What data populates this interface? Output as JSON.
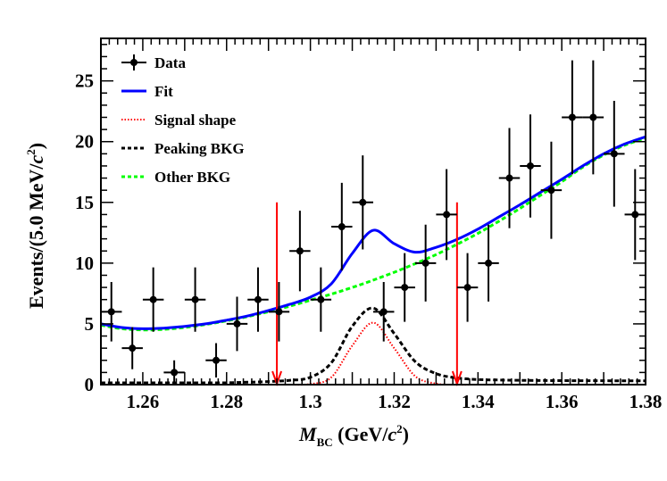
{
  "chart_data": {
    "type": "scatter",
    "xlabel": "M_BC (GeV/c^2)",
    "ylabel": "Events/(5.0 MeV/c^2)",
    "xlabel_parts": {
      "main": "M",
      "sub": "BC",
      "unit_pre": " (GeV/",
      "unit_c": "c",
      "unit_sup": "2",
      "unit_post": ")"
    },
    "ylabel_parts": {
      "pre": "Events/(5.0 MeV/",
      "c": "c",
      "sup": "2",
      "post": ")"
    },
    "xlim": [
      1.25,
      1.38
    ],
    "ylim": [
      0,
      28.5
    ],
    "x_ticks": [
      1.26,
      1.28,
      1.3,
      1.32,
      1.34,
      1.36,
      1.38
    ],
    "x_tick_labels": [
      "1.26",
      "1.28",
      "1.3",
      "1.32",
      "1.34",
      "1.36",
      "1.38"
    ],
    "y_ticks": [
      0,
      5,
      10,
      15,
      20,
      25
    ],
    "y_tick_labels": [
      "0",
      "5",
      "10",
      "15",
      "20",
      "25"
    ],
    "grid": false,
    "legend_position": "top-left",
    "series": [
      {
        "name": "Data",
        "kind": "points_with_errors",
        "color": "#000000",
        "x_bin_halfwidth": 0.0025,
        "points": [
          {
            "x": 1.2525,
            "y": 6
          },
          {
            "x": 1.2575,
            "y": 3
          },
          {
            "x": 1.2625,
            "y": 7
          },
          {
            "x": 1.2675,
            "y": 1
          },
          {
            "x": 1.2725,
            "y": 7
          },
          {
            "x": 1.2775,
            "y": 2
          },
          {
            "x": 1.2825,
            "y": 5
          },
          {
            "x": 1.2875,
            "y": 7
          },
          {
            "x": 1.2925,
            "y": 6
          },
          {
            "x": 1.2975,
            "y": 11
          },
          {
            "x": 1.3025,
            "y": 7
          },
          {
            "x": 1.3075,
            "y": 13
          },
          {
            "x": 1.3125,
            "y": 15
          },
          {
            "x": 1.3175,
            "y": 6
          },
          {
            "x": 1.3225,
            "y": 8
          },
          {
            "x": 1.3275,
            "y": 10
          },
          {
            "x": 1.3325,
            "y": 14
          },
          {
            "x": 1.3375,
            "y": 8
          },
          {
            "x": 1.3425,
            "y": 10
          },
          {
            "x": 1.3475,
            "y": 17
          },
          {
            "x": 1.3525,
            "y": 18
          },
          {
            "x": 1.3575,
            "y": 16
          },
          {
            "x": 1.3625,
            "y": 22
          },
          {
            "x": 1.3675,
            "y": 22
          },
          {
            "x": 1.3725,
            "y": 19
          },
          {
            "x": 1.3775,
            "y": 14
          }
        ]
      },
      {
        "name": "Fit",
        "kind": "line",
        "color": "#0000ff",
        "style": "solid"
      },
      {
        "name": "Signal shape",
        "kind": "line",
        "color": "#ff0000",
        "style": "dotted"
      },
      {
        "name": "Peaking BKG",
        "kind": "line",
        "color": "#000000",
        "style": "dashed"
      },
      {
        "name": "Other BKG",
        "kind": "line",
        "color": "#00ff00",
        "style": "dashed"
      }
    ],
    "curve_samples": {
      "x": [
        1.25,
        1.255,
        1.26,
        1.265,
        1.27,
        1.275,
        1.28,
        1.285,
        1.29,
        1.295,
        1.3,
        1.305,
        1.31,
        1.315,
        1.32,
        1.325,
        1.33,
        1.335,
        1.34,
        1.345,
        1.35,
        1.355,
        1.36,
        1.365,
        1.37,
        1.375,
        1.38
      ],
      "other_bkg": [
        4.9,
        4.6,
        4.5,
        4.55,
        4.7,
        4.95,
        5.25,
        5.6,
        6.0,
        6.45,
        6.95,
        7.45,
        8.0,
        8.6,
        9.25,
        9.95,
        10.7,
        11.55,
        12.45,
        13.45,
        14.5,
        15.6,
        16.7,
        17.9,
        18.9,
        19.7,
        20.3
      ],
      "fit": [
        5.0,
        4.7,
        4.6,
        4.65,
        4.8,
        5.0,
        5.3,
        5.65,
        6.1,
        6.6,
        7.2,
        8.3,
        10.8,
        12.7,
        11.6,
        10.9,
        11.3,
        11.95,
        12.8,
        13.8,
        14.8,
        15.85,
        16.9,
        18.0,
        19.0,
        19.8,
        20.4
      ],
      "peaking_bkg": [
        0.15,
        0.15,
        0.15,
        0.15,
        0.15,
        0.15,
        0.15,
        0.2,
        0.25,
        0.35,
        0.6,
        1.8,
        4.8,
        6.3,
        4.2,
        1.9,
        0.9,
        0.55,
        0.42,
        0.38,
        0.35,
        0.34,
        0.33,
        0.32,
        0.32,
        0.31,
        0.31
      ],
      "signal_shape": [
        0,
        0,
        0,
        0,
        0,
        0,
        0,
        0,
        0,
        0,
        0.05,
        0.6,
        3.2,
        5.1,
        3.0,
        0.7,
        0.08,
        0,
        0,
        0,
        0,
        0,
        0,
        0,
        0,
        0,
        0
      ]
    },
    "signal_window_arrows": [
      {
        "x": 1.292,
        "y_top": 15,
        "color": "#ff0000"
      },
      {
        "x": 1.335,
        "y_top": 15,
        "color": "#ff0000"
      }
    ]
  }
}
